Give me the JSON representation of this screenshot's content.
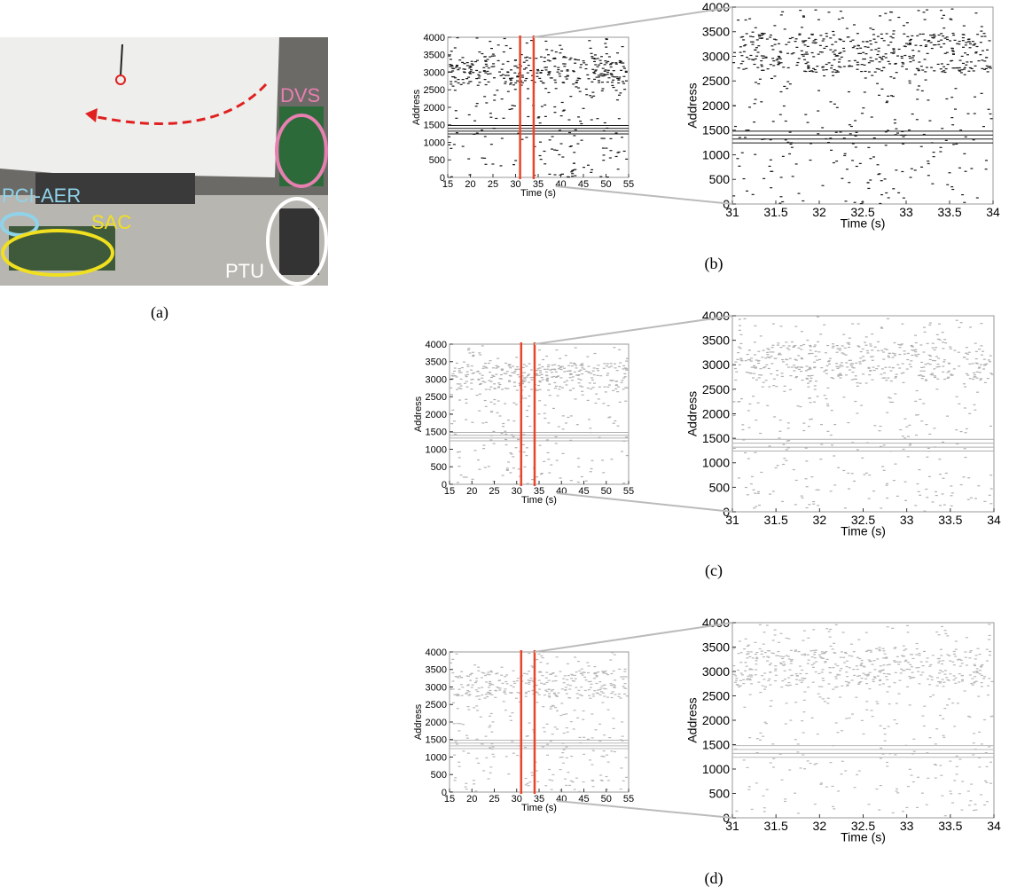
{
  "figure": {
    "photo": {
      "labels": [
        "DVS",
        "PCI-AER",
        "SAC",
        "PTU"
      ],
      "caption": "(a)"
    },
    "panels": [
      {
        "caption": "(b)",
        "charts": [
          {
            "type": "raster",
            "xlabel": "Time (s)",
            "ylabel": "Address",
            "xlim": [
              15,
              55
            ],
            "xticks": [
              15,
              20,
              25,
              30,
              35,
              40,
              45,
              50,
              55
            ],
            "ylim": [
              0,
              4000
            ],
            "yticks": [
              0,
              500,
              1000,
              1500,
              2000,
              2500,
              3000,
              3500,
              4000
            ],
            "highlight_x": [
              31,
              34
            ],
            "highlight_color": "#e8462a",
            "color": "#1a1a1a"
          },
          {
            "type": "raster",
            "xlabel": "Time (s)",
            "ylabel": "Address",
            "xlim": [
              31,
              34
            ],
            "xticks": [
              31,
              31.5,
              32,
              32.5,
              33,
              33.5,
              34
            ],
            "ylim": [
              0,
              4000
            ],
            "yticks": [
              0,
              500,
              1000,
              1500,
              2000,
              2500,
              3000,
              3500,
              4000
            ],
            "color": "#1a1a1a"
          }
        ]
      },
      {
        "caption": "(c)",
        "charts": [
          {
            "type": "raster",
            "xlabel": "Time (s)",
            "ylabel": "Address",
            "xlim": [
              15,
              55
            ],
            "xticks": [
              15,
              20,
              25,
              30,
              35,
              40,
              45,
              50,
              55
            ],
            "ylim": [
              0,
              4000
            ],
            "yticks": [
              0,
              500,
              1000,
              1500,
              2000,
              2500,
              3000,
              3500,
              4000
            ],
            "highlight_x": [
              31,
              34
            ],
            "highlight_color": "#e8462a",
            "color": "#b0b0b0"
          },
          {
            "type": "raster",
            "xlabel": "Time (s)",
            "ylabel": "Address",
            "xlim": [
              31,
              34
            ],
            "xticks": [
              31,
              31.5,
              32,
              32.5,
              33,
              33.5,
              34
            ],
            "ylim": [
              0,
              4000
            ],
            "yticks": [
              0,
              500,
              1000,
              1500,
              2000,
              2500,
              3000,
              3500,
              4000
            ],
            "color": "#b0b0b0"
          }
        ]
      },
      {
        "caption": "(d)",
        "charts": [
          {
            "type": "raster",
            "xlabel": "Time (s)",
            "ylabel": "Address",
            "xlim": [
              15,
              55
            ],
            "xticks": [
              15,
              20,
              25,
              30,
              35,
              40,
              45,
              50,
              55
            ],
            "ylim": [
              0,
              4000
            ],
            "yticks": [
              0,
              500,
              1000,
              1500,
              2000,
              2500,
              3000,
              3500,
              4000
            ],
            "highlight_x": [
              31,
              34
            ],
            "highlight_color": "#e8462a",
            "color": "#b8b8b8"
          },
          {
            "type": "raster",
            "xlabel": "Time (s)",
            "ylabel": "Address",
            "xlim": [
              31,
              34
            ],
            "xticks": [
              31,
              31.5,
              32,
              32.5,
              33,
              33.5,
              34
            ],
            "ylim": [
              0,
              4000
            ],
            "yticks": [
              0,
              500,
              1000,
              1500,
              2000,
              2500,
              3000,
              3500,
              4000
            ],
            "color": "#b8b8b8"
          }
        ]
      }
    ]
  }
}
